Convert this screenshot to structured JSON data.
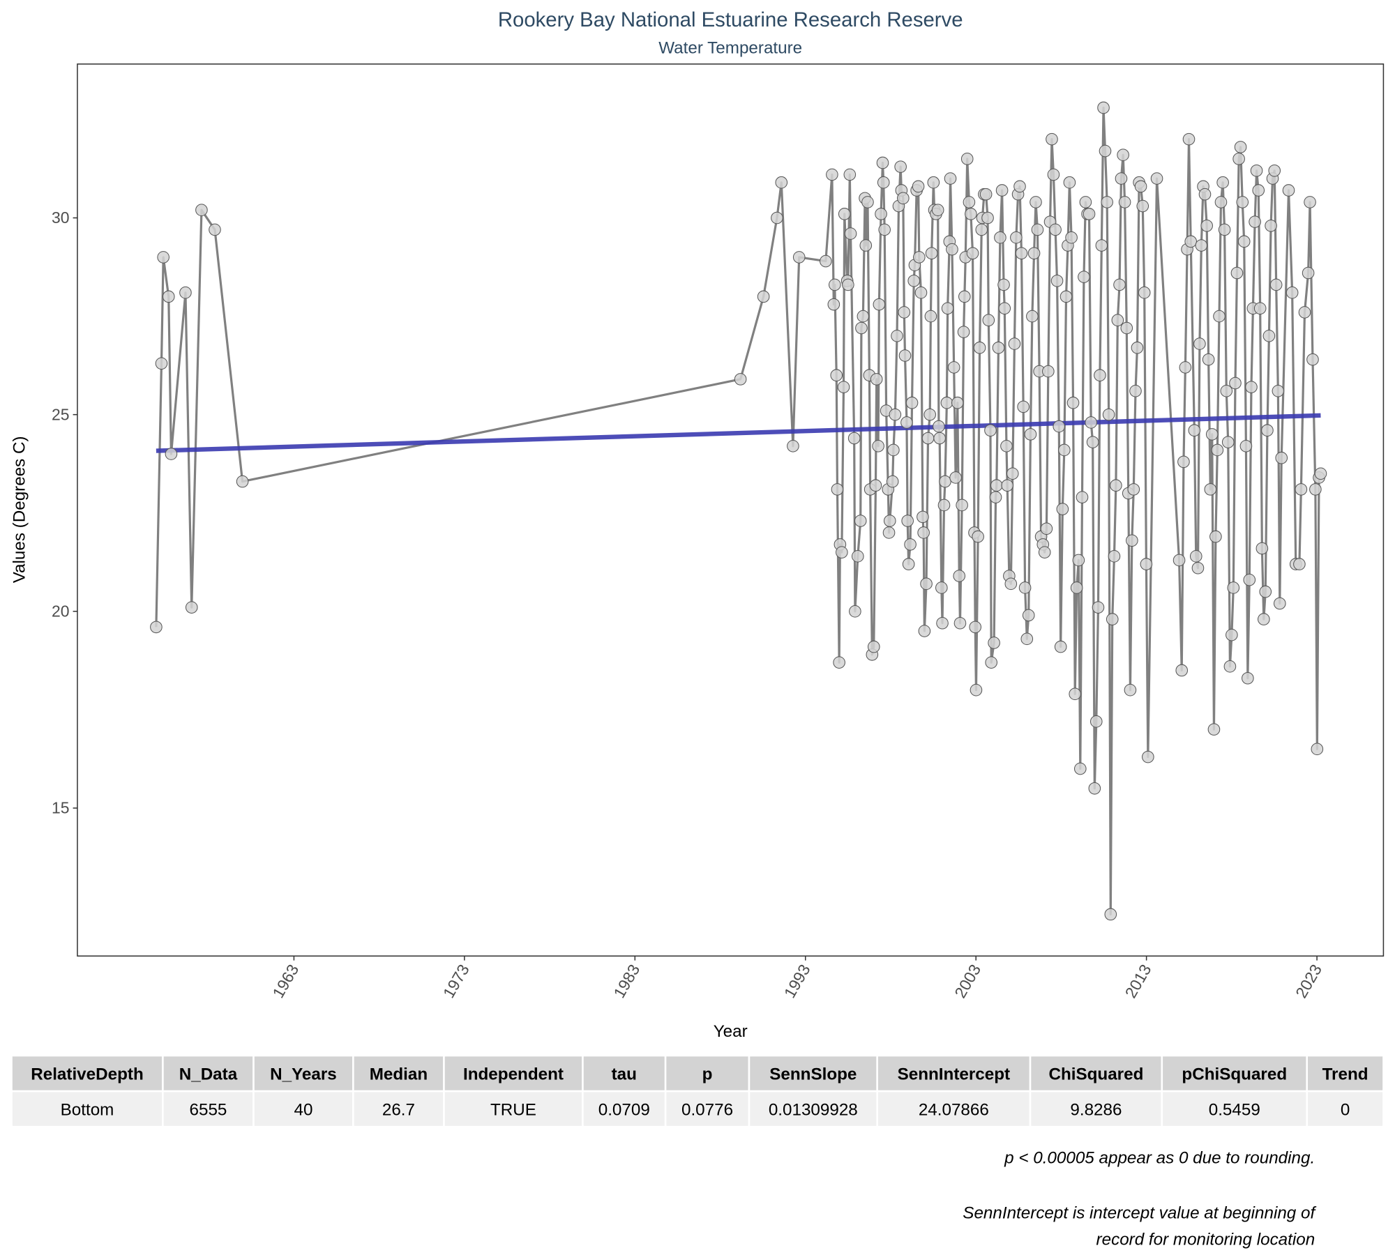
{
  "chart_data": {
    "type": "line",
    "title": "Rookery Bay National Estuarine Research Reserve",
    "subtitle": "Water Temperature",
    "x_label": "Year",
    "y_label": "Values (Degrees C)",
    "color": "#808080",
    "marker_color": "#d3d3d3",
    "grid": false,
    "xlim": [
      1950.3,
      2026.9
    ],
    "ylim": [
      11.24,
      33.91
    ],
    "xticks": [
      1963,
      1973,
      1983,
      1993,
      2003,
      2013,
      2023
    ],
    "yticks": [
      15,
      20,
      25,
      30
    ],
    "x": [
      1954.92,
      1955.23,
      1955.34,
      1955.65,
      1955.8,
      1956.64,
      1957.0,
      1957.58,
      1958.36,
      1959.98,
      1989.19,
      1990.54,
      1991.33,
      1991.59,
      1992.27,
      1992.63,
      1994.19,
      1994.56,
      1994.66,
      1994.72,
      1994.82,
      1994.87,
      1994.98,
      1995.03,
      1995.13,
      1995.24,
      1995.29,
      1995.45,
      1995.5,
      1995.6,
      1995.65,
      1995.86,
      1995.91,
      1996.07,
      1996.23,
      1996.28,
      1996.38,
      1996.49,
      1996.54,
      1996.65,
      1996.75,
      1996.8,
      1996.91,
      1997.01,
      1997.12,
      1997.17,
      1997.27,
      1997.32,
      1997.43,
      1997.53,
      1997.58,
      1997.64,
      1997.74,
      1997.85,
      1997.9,
      1997.95,
      1998.11,
      1998.16,
      1998.26,
      1998.37,
      1998.47,
      1998.58,
      1998.63,
      1998.73,
      1998.79,
      1998.84,
      1998.94,
      1998.99,
      1999.05,
      1999.15,
      1999.25,
      1999.36,
      1999.41,
      1999.52,
      1999.62,
      1999.67,
      1999.78,
      1999.88,
      1999.93,
      1999.98,
      2000.09,
      2000.19,
      2000.3,
      2000.35,
      2000.4,
      2000.51,
      2000.56,
      2000.66,
      2000.77,
      2000.82,
      2000.87,
      2000.98,
      2001.03,
      2001.13,
      2001.19,
      2001.29,
      2001.34,
      2001.45,
      2001.5,
      2001.6,
      2001.71,
      2001.81,
      2001.92,
      2002.02,
      2002.07,
      2002.18,
      2002.28,
      2002.33,
      2002.39,
      2002.49,
      2002.6,
      2002.7,
      2002.81,
      2002.91,
      2002.96,
      2003.01,
      2003.12,
      2003.22,
      2003.33,
      2003.38,
      2003.48,
      2003.59,
      2003.69,
      2003.74,
      2003.85,
      2003.9,
      2004.06,
      2004.16,
      2004.21,
      2004.32,
      2004.42,
      2004.53,
      2004.63,
      2004.68,
      2004.79,
      2004.84,
      2004.95,
      2005.05,
      2005.15,
      2005.26,
      2005.36,
      2005.47,
      2005.57,
      2005.67,
      2005.78,
      2005.88,
      2005.99,
      2006.09,
      2006.2,
      2006.3,
      2006.41,
      2006.51,
      2006.61,
      2006.72,
      2006.82,
      2006.93,
      2007.03,
      2007.14,
      2007.24,
      2007.35,
      2007.45,
      2007.55,
      2007.66,
      2007.76,
      2007.87,
      2007.97,
      2008.08,
      2008.18,
      2008.29,
      2008.39,
      2008.49,
      2008.6,
      2008.7,
      2008.81,
      2008.91,
      2009.02,
      2009.12,
      2009.23,
      2009.33,
      2009.43,
      2009.54,
      2009.64,
      2009.75,
      2009.85,
      2009.96,
      2010.06,
      2010.17,
      2010.27,
      2010.37,
      2010.48,
      2010.58,
      2010.69,
      2010.79,
      2010.9,
      2011.0,
      2011.11,
      2011.21,
      2011.31,
      2011.42,
      2011.52,
      2011.63,
      2011.73,
      2011.84,
      2011.94,
      2012.05,
      2012.15,
      2012.25,
      2012.36,
      2012.46,
      2012.57,
      2012.67,
      2012.78,
      2012.88,
      2012.99,
      2013.09,
      2013.61,
      2014.92,
      2015.07,
      2015.18,
      2015.28,
      2015.39,
      2015.49,
      2015.6,
      2015.81,
      2015.91,
      2016.02,
      2016.12,
      2016.22,
      2016.33,
      2016.43,
      2016.54,
      2016.64,
      2016.75,
      2016.85,
      2016.96,
      2017.06,
      2017.16,
      2017.27,
      2017.37,
      2017.48,
      2017.58,
      2017.69,
      2017.79,
      2017.9,
      2018.0,
      2018.1,
      2018.21,
      2018.31,
      2018.42,
      2018.52,
      2018.63,
      2018.73,
      2018.84,
      2018.94,
      2019.04,
      2019.15,
      2019.25,
      2019.36,
      2019.46,
      2019.57,
      2019.67,
      2019.78,
      2019.88,
      2019.98,
      2020.09,
      2020.19,
      2020.3,
      2020.4,
      2020.51,
      2020.61,
      2020.72,
      2020.82,
      2020.92,
      2021.34,
      2021.55,
      2021.76,
      2021.97,
      2022.07,
      2022.28,
      2022.49,
      2022.59,
      2022.75,
      2022.91,
      2023.01,
      2023.12,
      2023.22
    ],
    "values": [
      19.6,
      26.3,
      29.0,
      28.0,
      24.0,
      28.1,
      20.1,
      30.2,
      29.7,
      23.3,
      25.9,
      28.0,
      30.0,
      30.9,
      24.2,
      29.0,
      28.9,
      31.1,
      27.8,
      28.3,
      26.0,
      23.1,
      18.7,
      21.7,
      21.5,
      25.7,
      30.1,
      28.4,
      28.3,
      31.1,
      29.6,
      24.4,
      20.0,
      21.4,
      22.3,
      27.2,
      27.5,
      30.5,
      29.3,
      30.4,
      26.0,
      23.1,
      18.9,
      19.1,
      23.2,
      25.9,
      24.2,
      27.8,
      30.1,
      31.4,
      30.9,
      29.7,
      25.1,
      23.1,
      22.0,
      22.3,
      23.3,
      24.1,
      25.0,
      27.0,
      30.3,
      31.3,
      30.7,
      30.5,
      27.6,
      26.5,
      24.8,
      22.3,
      21.2,
      21.7,
      25.3,
      28.4,
      28.8,
      30.7,
      30.8,
      29.0,
      28.1,
      22.4,
      22.0,
      19.5,
      20.7,
      24.4,
      25.0,
      27.5,
      29.1,
      30.9,
      30.2,
      30.1,
      30.2,
      24.7,
      24.4,
      20.6,
      19.7,
      22.7,
      23.3,
      25.3,
      27.7,
      29.4,
      31.0,
      29.2,
      26.2,
      23.4,
      25.3,
      20.9,
      19.7,
      22.7,
      27.1,
      28.0,
      29.0,
      31.5,
      30.4,
      30.1,
      29.1,
      22.0,
      19.6,
      18.0,
      21.9,
      26.7,
      29.7,
      30.0,
      30.6,
      30.6,
      30.0,
      27.4,
      24.6,
      18.7,
      19.2,
      22.9,
      23.2,
      26.7,
      29.5,
      30.7,
      28.3,
      27.7,
      24.2,
      23.2,
      20.9,
      20.7,
      23.5,
      26.8,
      29.5,
      30.6,
      30.8,
      29.1,
      25.2,
      20.6,
      19.3,
      19.9,
      24.5,
      27.5,
      29.1,
      30.4,
      29.7,
      26.1,
      21.9,
      21.7,
      21.5,
      22.1,
      26.1,
      29.9,
      32.0,
      31.1,
      29.7,
      28.4,
      24.7,
      19.1,
      22.6,
      24.1,
      28.0,
      29.3,
      30.9,
      29.5,
      25.3,
      17.9,
      20.6,
      21.3,
      16.0,
      22.9,
      28.5,
      30.4,
      30.1,
      30.1,
      24.8,
      24.3,
      15.5,
      17.2,
      20.1,
      26.0,
      29.3,
      32.8,
      31.7,
      30.4,
      25.0,
      12.3,
      19.8,
      21.4,
      23.2,
      27.4,
      28.3,
      31.0,
      31.6,
      30.4,
      27.2,
      23.0,
      18.0,
      21.8,
      23.1,
      25.6,
      26.7,
      30.9,
      30.8,
      30.3,
      28.1,
      21.2,
      16.3,
      31.0,
      21.3,
      18.5,
      23.8,
      26.2,
      29.2,
      32.0,
      29.4,
      24.6,
      21.4,
      21.1,
      26.8,
      29.3,
      30.8,
      30.6,
      29.8,
      26.4,
      23.1,
      24.5,
      17.0,
      21.9,
      24.1,
      27.5,
      30.4,
      30.9,
      29.7,
      25.6,
      24.3,
      18.6,
      19.4,
      20.6,
      25.8,
      28.6,
      31.5,
      31.8,
      30.4,
      29.4,
      24.2,
      18.3,
      20.8,
      25.7,
      27.7,
      29.9,
      31.2,
      30.7,
      27.7,
      21.6,
      19.8,
      20.5,
      24.6,
      27.0,
      29.8,
      31.0,
      31.2,
      28.3,
      25.6,
      20.2,
      23.9,
      30.7,
      28.1,
      21.2,
      21.2,
      23.1,
      27.6,
      28.6,
      30.4,
      26.4,
      23.1,
      16.5,
      23.4,
      23.5
    ],
    "trend_line": {
      "color": "#3a3ab0",
      "x": [
        1954.92,
        2023.22
      ],
      "values": [
        24.08,
        24.98
      ]
    }
  },
  "table": {
    "columns": [
      "RelativeDepth",
      "N_Data",
      "N_Years",
      "Median",
      "Independent",
      "tau",
      "p",
      "SennSlope",
      "SennIntercept",
      "ChiSquared",
      "pChiSquared",
      "Trend"
    ],
    "rows": [
      [
        "Bottom",
        6555,
        40,
        26.7,
        "TRUE",
        0.0709,
        0.0776,
        0.01309928,
        24.07866,
        9.8286,
        0.5459,
        0
      ]
    ]
  },
  "notes": [
    "p < 0.00005 appear as 0 due to rounding.",
    "SennIntercept is intercept value at beginning of",
    "record for monitoring location"
  ]
}
